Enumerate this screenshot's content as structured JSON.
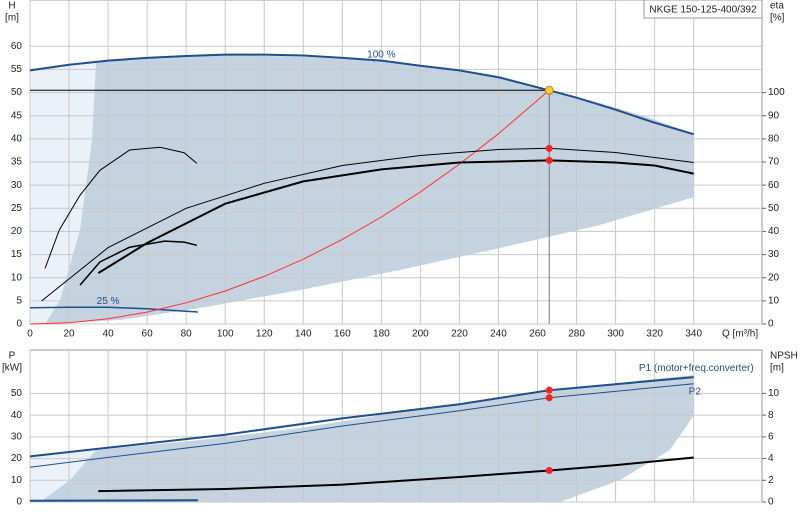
{
  "chart_data": [
    {
      "type": "line",
      "title": "NKGE 150-125-400/392",
      "ylabel": "H",
      "yunit": "[m]",
      "y2label": "eta",
      "y2unit": "[%]",
      "xlabel": "Q [m³/h]",
      "xlim": [
        0,
        375
      ],
      "xticks": [
        0,
        20,
        40,
        60,
        80,
        100,
        120,
        140,
        160,
        180,
        200,
        220,
        240,
        260,
        280,
        300,
        320,
        340
      ],
      "ylim": [
        0,
        70
      ],
      "yticks": [
        0,
        5,
        10,
        15,
        20,
        25,
        30,
        35,
        40,
        45,
        50,
        55,
        60
      ],
      "y2lim": [
        0,
        140
      ],
      "y2ticks": [
        0,
        10,
        20,
        30,
        40,
        50,
        60,
        70,
        80,
        90,
        100
      ],
      "grid": true,
      "xtick_labels": true,
      "duty_point": {
        "x": 266,
        "y": 50.5,
        "color": "#ffcc33"
      },
      "series": [
        {
          "name": "100 %",
          "color": "#1f4e8c",
          "width": 2,
          "x": [
            0,
            20,
            40,
            60,
            80,
            100,
            120,
            140,
            160,
            180,
            200,
            220,
            240,
            266,
            280,
            300,
            320,
            340
          ],
          "values": [
            54.8,
            56.0,
            56.9,
            57.5,
            57.9,
            58.2,
            58.2,
            58.0,
            57.5,
            56.9,
            55.8,
            54.8,
            53.3,
            50.5,
            48.9,
            46.3,
            43.5,
            41.0
          ]
        },
        {
          "name": "25 %",
          "color": "#1f4e8c",
          "width": 1.5,
          "x": [
            0,
            20,
            40,
            60,
            86
          ],
          "values": [
            3.5,
            3.6,
            3.6,
            3.3,
            2.6
          ]
        },
        {
          "color": "#ff3030",
          "width": 1,
          "x": [
            0,
            20,
            40,
            60,
            80,
            100,
            120,
            140,
            160,
            180,
            200,
            220,
            240,
            266
          ],
          "values": [
            0,
            0.29,
            1.14,
            2.57,
            4.57,
            7.14,
            10.28,
            13.99,
            18.27,
            23.12,
            28.55,
            34.54,
            41.11,
            50.5
          ]
        },
        {
          "color": "#000000",
          "width": 2,
          "axis": "y2",
          "marker": "#ff2020",
          "x": [
            35,
            60,
            100,
            140,
            180,
            220,
            266,
            300,
            320,
            340
          ],
          "values": [
            22,
            35,
            52,
            61.6,
            66.8,
            69.8,
            70.7,
            69.8,
            68.5,
            65
          ]
        },
        {
          "color": "#000000",
          "width": 1,
          "axis": "y2",
          "marker": "#ff2020",
          "x": [
            6,
            40,
            80,
            120,
            160,
            200,
            240,
            266,
            300,
            340
          ],
          "values": [
            10,
            33,
            50,
            60.8,
            68.5,
            72.8,
            75.4,
            75.9,
            74.1,
            69.8
          ]
        },
        {
          "color": "#000000",
          "width": 1,
          "axis": "y2",
          "x": [
            7.7,
            15,
            25.6,
            35.8,
            51,
            66.6,
            79,
            85.5
          ],
          "values": [
            24,
            40.6,
            55.6,
            66.4,
            75.2,
            76.4,
            74,
            69.4
          ]
        },
        {
          "color": "#000000",
          "width": 1.5,
          "axis": "y2",
          "x": [
            25.6,
            35.8,
            51,
            69,
            79,
            85.5
          ],
          "values": [
            16.8,
            26.8,
            33.2,
            35.8,
            35.4,
            34
          ]
        }
      ]
    },
    {
      "type": "line",
      "ylabel": "P",
      "yunit": "[kW]",
      "y2label": "NPSH",
      "y2unit": "[m]",
      "xlim": [
        0,
        375
      ],
      "xticks": [
        0,
        20,
        40,
        60,
        80,
        100,
        120,
        140,
        160,
        180,
        200,
        220,
        240,
        260,
        280,
        300,
        320,
        340
      ],
      "ylim": [
        0,
        70
      ],
      "yticks": [
        0,
        10,
        20,
        30,
        40,
        50
      ],
      "y2lim": [
        0,
        14
      ],
      "y2ticks": [
        0,
        2,
        4,
        6,
        8,
        10
      ],
      "grid": true,
      "xtick_labels": false,
      "series": [
        {
          "name": "P1 (motor+freq.converter)",
          "color": "#1f4e8c",
          "width": 2,
          "marker": "#ff2020",
          "x": [
            0,
            35,
            100,
            160,
            220,
            266,
            340
          ],
          "values": [
            21,
            24.5,
            31,
            38.5,
            45,
            51.5,
            57.5
          ]
        },
        {
          "name": "P2",
          "color": "#1f4e8c",
          "width": 1,
          "marker": "#ff2020",
          "x": [
            0,
            35,
            100,
            160,
            220,
            266,
            340
          ],
          "values": [
            16,
            20,
            27,
            35,
            42,
            48,
            54.5
          ]
        },
        {
          "color": "#000000",
          "width": 2,
          "axis": "y2",
          "marker": "#ff2020",
          "x": [
            35,
            100,
            160,
            220,
            266,
            300,
            340
          ],
          "values": [
            1,
            1.2,
            1.6,
            2.3,
            2.9,
            3.4,
            4.1
          ]
        },
        {
          "color": "#1f4e8c",
          "width": 2,
          "x": [
            0,
            86
          ],
          "values": [
            0.6,
            0.8
          ]
        }
      ]
    }
  ]
}
